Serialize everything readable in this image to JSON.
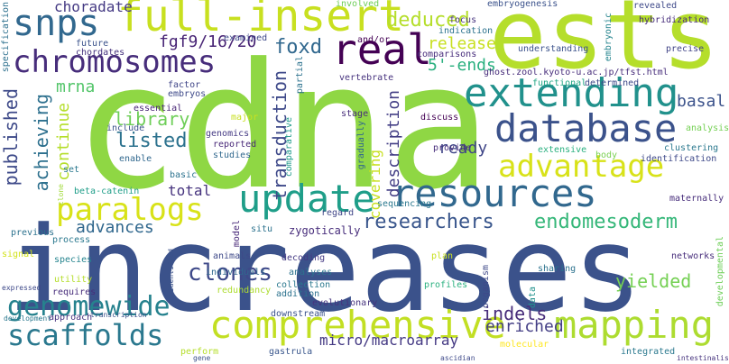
{
  "words": [
    {
      "text": "cdna",
      "color": "#8fd744"
    },
    {
      "text": "increases",
      "color": "#3b528b"
    },
    {
      "text": "ests",
      "color": "#b5de2b"
    },
    {
      "text": "full-insert",
      "color": "#c8e020"
    },
    {
      "text": "snps",
      "color": "#31688e"
    },
    {
      "text": "chromosomes",
      "color": "#472d7b"
    },
    {
      "text": "real",
      "color": "#440154"
    },
    {
      "text": "extending",
      "color": "#21918c"
    },
    {
      "text": "database",
      "color": "#3b528b"
    },
    {
      "text": "advantage",
      "color": "#d8e219"
    },
    {
      "text": "resources",
      "color": "#31688e"
    },
    {
      "text": "update",
      "color": "#1f9e89"
    },
    {
      "text": "paralogs",
      "color": "#d8e219"
    },
    {
      "text": "comprehensive",
      "color": "#c2df23"
    },
    {
      "text": "mapping",
      "color": "#addc30"
    },
    {
      "text": "genomewide",
      "color": "#26828e"
    },
    {
      "text": "scaffolds",
      "color": "#2a788e"
    },
    {
      "text": "researchers",
      "color": "#39568c"
    },
    {
      "text": "endomesoderm",
      "color": "#35b779"
    },
    {
      "text": "deduced",
      "color": "#b5de2b"
    },
    {
      "text": "fgf9/16/20",
      "color": "#482475"
    },
    {
      "text": "foxd",
      "color": "#31688e"
    },
    {
      "text": "published",
      "color": "#3e4a89"
    },
    {
      "text": "choradate",
      "color": "#443983"
    },
    {
      "text": "mrna",
      "color": "#52c569"
    },
    {
      "text": "library",
      "color": "#6ece58"
    },
    {
      "text": "listed",
      "color": "#2c728e"
    },
    {
      "text": "achieving",
      "color": "#2d708e"
    },
    {
      "text": "continue",
      "color": "#b5de2b"
    },
    {
      "text": "transduction",
      "color": "#3e4989"
    },
    {
      "text": "description",
      "color": "#433e85"
    },
    {
      "text": "release",
      "color": "#c8e020"
    },
    {
      "text": "5'-ends",
      "color": "#2ab07f"
    },
    {
      "text": "basal",
      "color": "#3b528b"
    },
    {
      "text": "covering",
      "color": "#c8e020"
    },
    {
      "text": "ready",
      "color": "#404688"
    },
    {
      "text": "total",
      "color": "#46337e"
    },
    {
      "text": "advances",
      "color": "#31688e"
    },
    {
      "text": "clones",
      "color": "#3e4989"
    },
    {
      "text": "indels",
      "color": "#472c7a"
    },
    {
      "text": "yielded",
      "color": "#75d054"
    },
    {
      "text": "enriched",
      "color": "#433e85"
    },
    {
      "text": "micro/macroarray",
      "color": "#443983"
    },
    {
      "text": "involved",
      "color": "#6ece58"
    },
    {
      "text": "focus",
      "color": "#46327e"
    },
    {
      "text": "embryogenesis",
      "color": "#3b528b"
    },
    {
      "text": "revealed",
      "color": "#3e4989"
    },
    {
      "text": "hybridization",
      "color": "#472d7b"
    },
    {
      "text": "indication",
      "color": "#2c728e"
    },
    {
      "text": "specification",
      "color": "#2d708e"
    },
    {
      "text": "future",
      "color": "#3b528b"
    },
    {
      "text": "chordates",
      "color": "#46337e"
    },
    {
      "text": "examined",
      "color": "#3e4989"
    },
    {
      "text": "and/or",
      "color": "#440154"
    },
    {
      "text": "comparisons",
      "color": "#472d7b"
    },
    {
      "text": "understanding",
      "color": "#3b528b"
    },
    {
      "text": "ghost.zool.kyoto-u.ac.jp/tfst.html",
      "color": "#472d7b"
    },
    {
      "text": "embryonic",
      "color": "#25848e"
    },
    {
      "text": "precise",
      "color": "#414487"
    },
    {
      "text": "maternally",
      "color": "#472d7b"
    },
    {
      "text": "partial",
      "color": "#2c728e"
    },
    {
      "text": "vertebrate",
      "color": "#46327e"
    },
    {
      "text": "functional",
      "color": "#22a785"
    },
    {
      "text": "determined",
      "color": "#3e4989"
    },
    {
      "text": "factor",
      "color": "#404688"
    },
    {
      "text": "embryos",
      "color": "#3e4989"
    },
    {
      "text": "essential",
      "color": "#482576"
    },
    {
      "text": "include",
      "color": "#3b528b"
    },
    {
      "text": "genomics",
      "color": "#443983"
    },
    {
      "text": "reported",
      "color": "#482878"
    },
    {
      "text": "studies",
      "color": "#31688e"
    },
    {
      "text": "comparative",
      "color": "#1f9a8a"
    },
    {
      "text": "enable",
      "color": "#31688e"
    },
    {
      "text": "major",
      "color": "#c8e020"
    },
    {
      "text": "stage",
      "color": "#472d7b"
    },
    {
      "text": "gradually",
      "color": "#31688e"
    },
    {
      "text": "discuss",
      "color": "#440154"
    },
    {
      "text": "provide",
      "color": "#472d7b"
    },
    {
      "text": "clustering",
      "color": "#2a788e"
    },
    {
      "text": "identification",
      "color": "#3e4989"
    },
    {
      "text": "extensive",
      "color": "#2ab07f"
    },
    {
      "text": "body",
      "color": "#7ad151"
    },
    {
      "text": "analysis",
      "color": "#75d054"
    },
    {
      "text": "set",
      "color": "#2a788e"
    },
    {
      "text": "basic",
      "color": "#2c728e"
    },
    {
      "text": "beta-catenin",
      "color": "#1f9e89"
    },
    {
      "text": "clone",
      "color": "#a0da39"
    },
    {
      "text": "previous",
      "color": "#2c728e"
    },
    {
      "text": "process",
      "color": "#2a788e"
    },
    {
      "text": "signal",
      "color": "#d2e21b"
    },
    {
      "text": "species",
      "color": "#25848e"
    },
    {
      "text": "utility",
      "color": "#b5de2b"
    },
    {
      "text": "requires",
      "color": "#472d7b"
    },
    {
      "text": "expressed",
      "color": "#3e4989"
    },
    {
      "text": "development",
      "color": "#2a788e"
    },
    {
      "text": "approach",
      "color": "#46327e"
    },
    {
      "text": "transcription",
      "color": "#3b528b"
    },
    {
      "text": "perform",
      "color": "#b5de2b"
    },
    {
      "text": "gene",
      "color": "#3b528b"
    },
    {
      "text": "gastrula",
      "color": "#39568c"
    },
    {
      "text": "downstream",
      "color": "#3b528b"
    },
    {
      "text": "model",
      "color": "#482878"
    },
    {
      "text": "situ",
      "color": "#2c728e"
    },
    {
      "text": "zygotically",
      "color": "#472d7b"
    },
    {
      "text": "regard",
      "color": "#404688"
    },
    {
      "text": "sequencing",
      "color": "#2a788e"
    },
    {
      "text": "animals",
      "color": "#3e4989"
    },
    {
      "text": "individuals",
      "color": "#31688e"
    },
    {
      "text": "decoding",
      "color": "#443983"
    },
    {
      "text": "redundancy",
      "color": "#addc30"
    },
    {
      "text": "analyses",
      "color": "#2c728e"
    },
    {
      "text": "collection",
      "color": "#2a788e"
    },
    {
      "text": "addition",
      "color": "#2c728e"
    },
    {
      "text": "evolutionary",
      "color": "#46337e"
    },
    {
      "text": "identified",
      "color": "#3b528b"
    },
    {
      "text": "plan",
      "color": "#c8e020"
    },
    {
      "text": "profiles",
      "color": "#2ab07f"
    },
    {
      "text": "organism",
      "color": "#3e4989"
    },
    {
      "text": "data",
      "color": "#21918c"
    },
    {
      "text": "sharing",
      "color": "#2c728e"
    },
    {
      "text": "networks",
      "color": "#472d7b"
    },
    {
      "text": "developmental",
      "color": "#6ece58"
    },
    {
      "text": "molecular",
      "color": "#fde725"
    },
    {
      "text": "integrated",
      "color": "#2a788e"
    },
    {
      "text": "ascidian",
      "color": "#3e4989"
    },
    {
      "text": "intestinalis",
      "color": "#46337e"
    }
  ]
}
